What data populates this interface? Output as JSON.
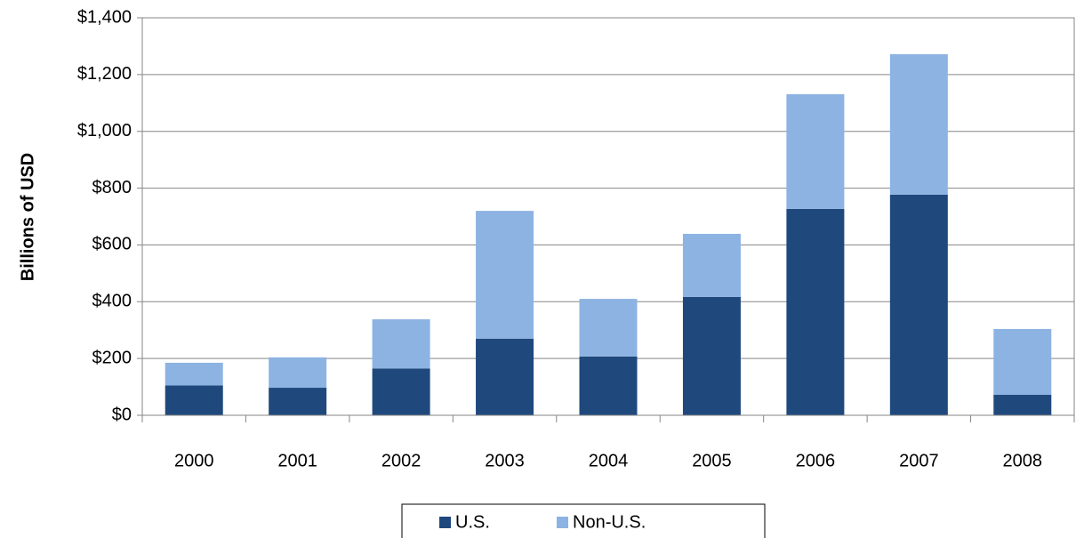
{
  "chart_data": {
    "type": "stacked_bar",
    "y_label": "Billions of USD",
    "categories": [
      "2000",
      "2001",
      "2002",
      "2003",
      "2004",
      "2005",
      "2006",
      "2007",
      "2008"
    ],
    "series": [
      {
        "name": "U.S.",
        "color": "#1f497d",
        "values": [
          105,
          97,
          165,
          270,
          207,
          417,
          727,
          777,
          72
        ]
      },
      {
        "name": "Non-U.S.",
        "color": "#8db3e2",
        "values": [
          80,
          107,
          173,
          450,
          203,
          222,
          404,
          495,
          232
        ]
      }
    ],
    "ylim": [
      0,
      1400
    ],
    "yticks": [
      {
        "value": 0,
        "label": "$0"
      },
      {
        "value": 200,
        "label": "$200"
      },
      {
        "value": 400,
        "label": "$400"
      },
      {
        "value": 600,
        "label": "$600"
      },
      {
        "value": 800,
        "label": "$800"
      },
      {
        "value": 1000,
        "label": "$1,000"
      },
      {
        "value": 1200,
        "label": "$1,200"
      },
      {
        "value": 1400,
        "label": "$1,400"
      }
    ],
    "grid": true,
    "legend": "bottom"
  }
}
